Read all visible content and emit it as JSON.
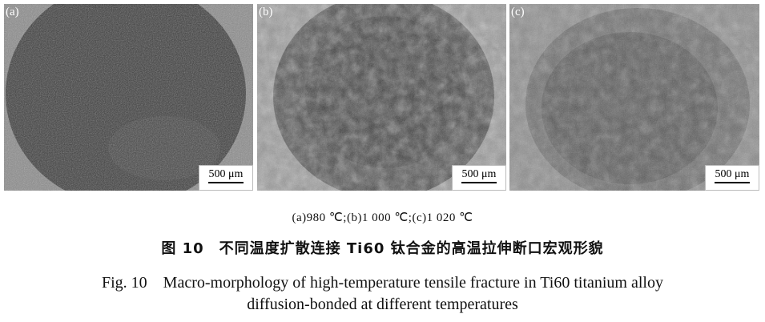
{
  "panels": [
    {
      "label": "(a)",
      "scale_bar": "500 μm"
    },
    {
      "label": "(b)",
      "scale_bar": "500 μm"
    },
    {
      "label": "(c)",
      "scale_bar": "500 μm"
    }
  ],
  "caption": {
    "subcaption": "(a)980 ℃;(b)1 000 ℃;(c)1 020 ℃",
    "chinese": "图 10　不同温度扩散连接 Ti60 钛合金的高温拉伸断口宏观形貌",
    "english_line1": "Fig. 10　Macro-morphology of high-temperature tensile fracture in Ti60 titanium alloy",
    "english_line2": "diffusion-bonded at different temperatures"
  }
}
